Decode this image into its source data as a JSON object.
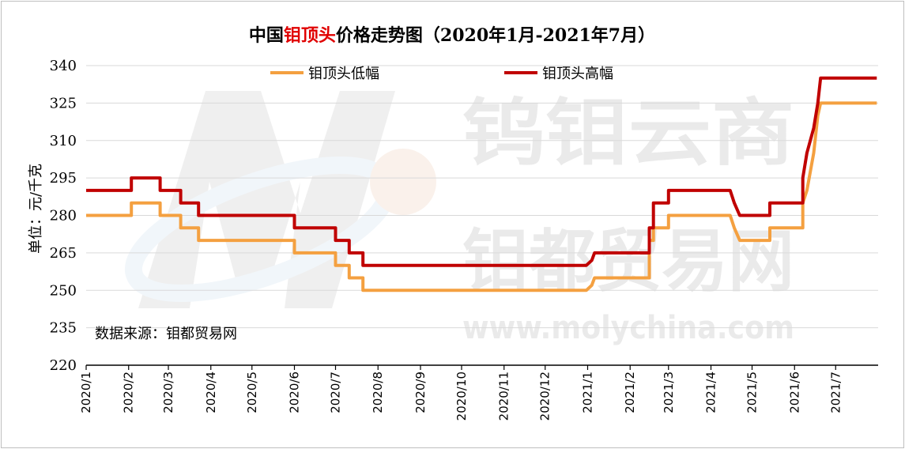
{
  "chart_data": {
    "type": "line",
    "title_parts": [
      {
        "text": "中国",
        "color": "#000000"
      },
      {
        "text": "钼顶头",
        "color": "#e00000"
      },
      {
        "text": "价格走势图（2020年1月-2021年7月）",
        "color": "#000000"
      }
    ],
    "ylabel": "单位：元/千克",
    "ylim": [
      220,
      340
    ],
    "yticks": [
      220,
      235,
      250,
      265,
      280,
      295,
      310,
      325,
      340
    ],
    "xlim": [
      "2020-01-01",
      "2021-08-01"
    ],
    "xticks": [
      {
        "label": "2020/1",
        "date": "2020-01-01"
      },
      {
        "label": "2020/2",
        "date": "2020-02-01"
      },
      {
        "label": "2020/3",
        "date": "2020-03-01"
      },
      {
        "label": "2020/4",
        "date": "2020-04-01"
      },
      {
        "label": "2020/5",
        "date": "2020-05-01"
      },
      {
        "label": "2020/6",
        "date": "2020-06-01"
      },
      {
        "label": "2020/7",
        "date": "2020-07-01"
      },
      {
        "label": "2020/8",
        "date": "2020-08-01"
      },
      {
        "label": "2020/9",
        "date": "2020-09-01"
      },
      {
        "label": "2020/10",
        "date": "2020-10-01"
      },
      {
        "label": "2020/11",
        "date": "2020-11-01"
      },
      {
        "label": "2020/12",
        "date": "2020-12-01"
      },
      {
        "label": "2021/1",
        "date": "2021-01-01"
      },
      {
        "label": "2021/2",
        "date": "2021-02-01"
      },
      {
        "label": "2021/3",
        "date": "2021-03-01"
      },
      {
        "label": "2021/4",
        "date": "2021-04-01"
      },
      {
        "label": "2021/5",
        "date": "2021-05-01"
      },
      {
        "label": "2021/6",
        "date": "2021-06-01"
      },
      {
        "label": "2021/7",
        "date": "2021-07-01"
      }
    ],
    "grid": true,
    "legend_position": "top",
    "series": [
      {
        "name": "钼顶头低幅",
        "color": "#f4a040",
        "points": [
          [
            "2020-01-01",
            280
          ],
          [
            "2020-02-03",
            280
          ],
          [
            "2020-02-03",
            285
          ],
          [
            "2020-02-24",
            285
          ],
          [
            "2020-02-24",
            280
          ],
          [
            "2020-03-10",
            280
          ],
          [
            "2020-03-10",
            275
          ],
          [
            "2020-03-23",
            275
          ],
          [
            "2020-03-23",
            270
          ],
          [
            "2020-06-01",
            270
          ],
          [
            "2020-06-01",
            265
          ],
          [
            "2020-07-01",
            265
          ],
          [
            "2020-07-01",
            260
          ],
          [
            "2020-07-11",
            260
          ],
          [
            "2020-07-11",
            255
          ],
          [
            "2020-07-21",
            255
          ],
          [
            "2020-07-21",
            250
          ],
          [
            "2020-12-31",
            250
          ],
          [
            "2021-01-04",
            252
          ],
          [
            "2021-01-06",
            255
          ],
          [
            "2021-02-15",
            255
          ],
          [
            "2021-02-15",
            270
          ],
          [
            "2021-02-18",
            270
          ],
          [
            "2021-02-18",
            275
          ],
          [
            "2021-03-01",
            275
          ],
          [
            "2021-03-01",
            280
          ],
          [
            "2021-04-15",
            280
          ],
          [
            "2021-04-18",
            275
          ],
          [
            "2021-04-22",
            270
          ],
          [
            "2021-05-14",
            270
          ],
          [
            "2021-05-14",
            275
          ],
          [
            "2021-06-07",
            275
          ],
          [
            "2021-06-07",
            285
          ],
          [
            "2021-06-10",
            290
          ],
          [
            "2021-06-15",
            305
          ],
          [
            "2021-06-18",
            320
          ],
          [
            "2021-06-20",
            325
          ],
          [
            "2021-07-31",
            325
          ]
        ]
      },
      {
        "name": "钼顶头高幅",
        "color": "#c00000",
        "points": [
          [
            "2020-01-01",
            290
          ],
          [
            "2020-02-03",
            290
          ],
          [
            "2020-02-03",
            295
          ],
          [
            "2020-02-24",
            295
          ],
          [
            "2020-02-24",
            290
          ],
          [
            "2020-03-10",
            290
          ],
          [
            "2020-03-10",
            285
          ],
          [
            "2020-03-23",
            285
          ],
          [
            "2020-03-23",
            280
          ],
          [
            "2020-06-01",
            280
          ],
          [
            "2020-06-01",
            275
          ],
          [
            "2020-07-01",
            275
          ],
          [
            "2020-07-01",
            270
          ],
          [
            "2020-07-11",
            270
          ],
          [
            "2020-07-11",
            265
          ],
          [
            "2020-07-21",
            265
          ],
          [
            "2020-07-21",
            260
          ],
          [
            "2020-12-31",
            260
          ],
          [
            "2021-01-04",
            262
          ],
          [
            "2021-01-06",
            265
          ],
          [
            "2021-02-15",
            265
          ],
          [
            "2021-02-15",
            275
          ],
          [
            "2021-02-18",
            275
          ],
          [
            "2021-02-18",
            285
          ],
          [
            "2021-03-01",
            285
          ],
          [
            "2021-03-01",
            290
          ],
          [
            "2021-04-15",
            290
          ],
          [
            "2021-04-18",
            285
          ],
          [
            "2021-04-22",
            280
          ],
          [
            "2021-05-14",
            280
          ],
          [
            "2021-05-14",
            285
          ],
          [
            "2021-06-07",
            285
          ],
          [
            "2021-06-07",
            295
          ],
          [
            "2021-06-10",
            305
          ],
          [
            "2021-06-15",
            315
          ],
          [
            "2021-06-18",
            325
          ],
          [
            "2021-06-20",
            335
          ],
          [
            "2021-07-31",
            335
          ]
        ]
      }
    ],
    "annotation": "数据来源：钼都贸易网",
    "watermark": [
      "钨钼云商",
      "钼都贸易网",
      "www.molychina.com"
    ]
  }
}
